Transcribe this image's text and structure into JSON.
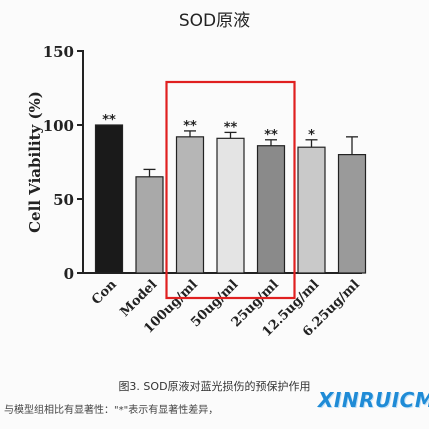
{
  "chart_data": {
    "type": "bar",
    "title": "SOD原液",
    "ylabel": "Cell Viability (%)",
    "xlabel": "",
    "ylim": [
      0,
      150
    ],
    "yticks": [
      0,
      50,
      100,
      150
    ],
    "grid": false,
    "categories": [
      "Con",
      "Model",
      "100ug/ml",
      "50ug/ml",
      "25ug/ml",
      "12.5ug/ml",
      "6.25ug/ml"
    ],
    "values": [
      100,
      65,
      92,
      91,
      86,
      85,
      80
    ],
    "errors": [
      0,
      5,
      4,
      4,
      4,
      5,
      12
    ],
    "significance": [
      "**",
      "",
      "**",
      "**",
      "**",
      "*",
      ""
    ],
    "bar_colors": [
      "#1a1a1a",
      "#a9a9a9",
      "#b6b6b6",
      "#e4e4e4",
      "#8a8a8a",
      "#c9c9c9",
      "#9a9a9a"
    ],
    "highlight_color": "#e02020"
  },
  "caption": "图3. SOD原液对蓝光损伤的预保护作用",
  "note": "与模型组相比有显著性：\"*\"表示有显著性差异，",
  "watermark": "XINRUICMS"
}
